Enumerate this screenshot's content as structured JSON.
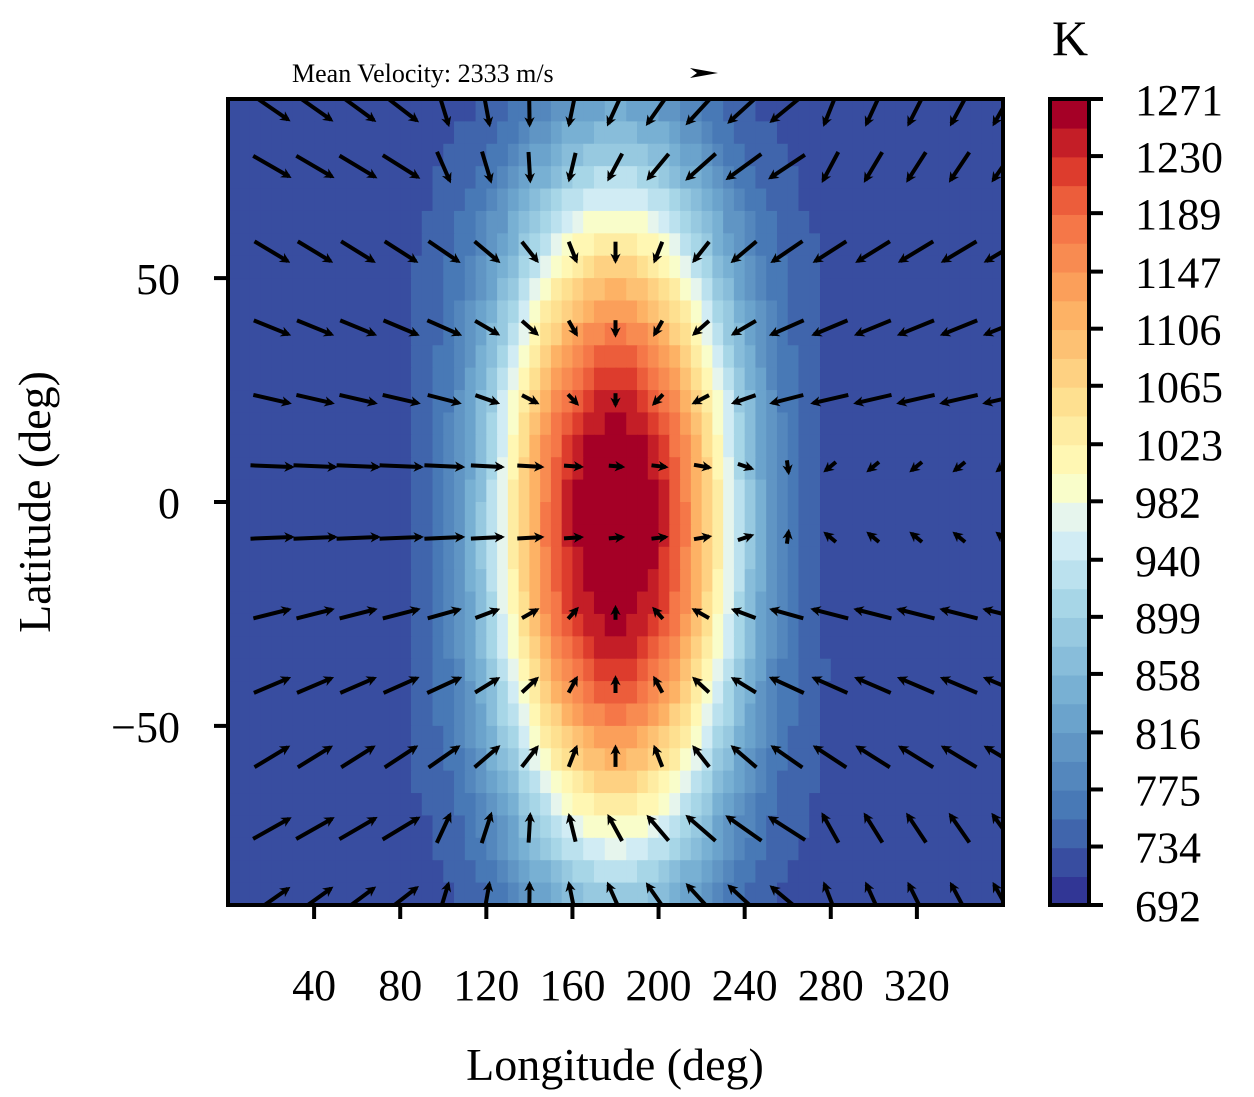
{
  "chart_data": {
    "type": "heatmap",
    "subtype": "filled-contour with wind vector quiver overlay",
    "xlabel": "Longitude (deg)",
    "ylabel": "Latitude (deg)",
    "xlim": [
      0,
      360
    ],
    "ylim": [
      -90,
      90
    ],
    "xticks": [
      40,
      80,
      120,
      160,
      200,
      240,
      280,
      320
    ],
    "xtick_labels": [
      "40",
      "80",
      "120",
      "160",
      "200",
      "240",
      "280",
      "320"
    ],
    "yticks": [
      50,
      0,
      -50
    ],
    "ytick_labels": [
      "50",
      "0",
      "−50"
    ],
    "quiver_reference": {
      "label": "Mean Velocity: 2333 m/s",
      "value": 2333,
      "unit": "m/s"
    },
    "colorbar": {
      "title": "K",
      "min": 692,
      "max": 1271,
      "tick_values": [
        692,
        734,
        775,
        816,
        858,
        899,
        940,
        982,
        1023,
        1065,
        1106,
        1147,
        1189,
        1230,
        1271
      ],
      "tick_labels": [
        "692",
        "734",
        "775",
        "816",
        "858",
        "899",
        "940",
        "982",
        "1023",
        "1065",
        "1106",
        "1147",
        "1189",
        "1230",
        "1271"
      ],
      "colormap": "RdYlBu_r"
    },
    "temperature_field": {
      "description": "hot dayside centered at the substellar point",
      "hotspot_center": {
        "lon": 180,
        "lat": -5
      },
      "peak_K": 1271,
      "nightside_K": 725
    },
    "vector_grid": {
      "longitudes": [
        20,
        40,
        60,
        80,
        100,
        120,
        140,
        160,
        180,
        200,
        220,
        240,
        260,
        280,
        300,
        320,
        340,
        360
      ],
      "latitudes": [
        88,
        75,
        56,
        39,
        23,
        8,
        -8,
        -25,
        -41,
        -57,
        -73,
        -89
      ]
    }
  }
}
